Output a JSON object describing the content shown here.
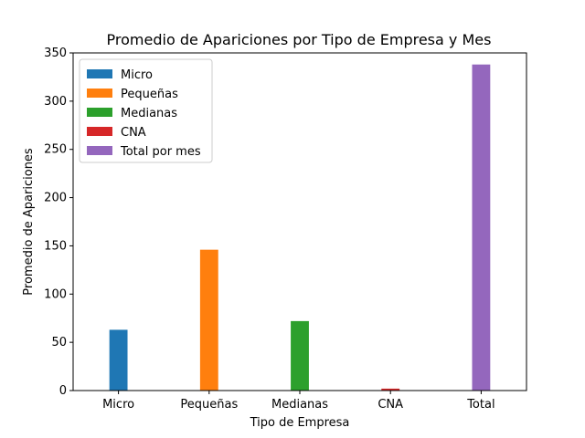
{
  "chart_data": {
    "type": "bar",
    "title": "Promedio de Apariciones por Tipo de Empresa y Mes",
    "xlabel": "Tipo de Empresa",
    "ylabel": "Promedio de Apariciones",
    "categories": [
      "Micro",
      "Pequeñas",
      "Medianas",
      "CNA",
      "Total"
    ],
    "series": [
      {
        "name": "Micro",
        "color": "#1f77b4",
        "values": [
          63,
          0,
          0,
          0,
          0
        ]
      },
      {
        "name": "Pequeñas",
        "color": "#ff7f0e",
        "values": [
          0,
          146,
          0,
          0,
          0
        ]
      },
      {
        "name": "Medianas",
        "color": "#2ca02c",
        "values": [
          0,
          0,
          72,
          0,
          0
        ]
      },
      {
        "name": "CNA",
        "color": "#d62728",
        "values": [
          0,
          0,
          0,
          2,
          0
        ]
      },
      {
        "name": "Total por mes",
        "color": "#9467bd",
        "values": [
          0,
          0,
          0,
          0,
          338
        ]
      }
    ],
    "ylim": [
      0,
      350
    ],
    "yticks": [
      0,
      50,
      100,
      150,
      200,
      250,
      300,
      350
    ],
    "grid": false,
    "legend_position": "top-left"
  }
}
